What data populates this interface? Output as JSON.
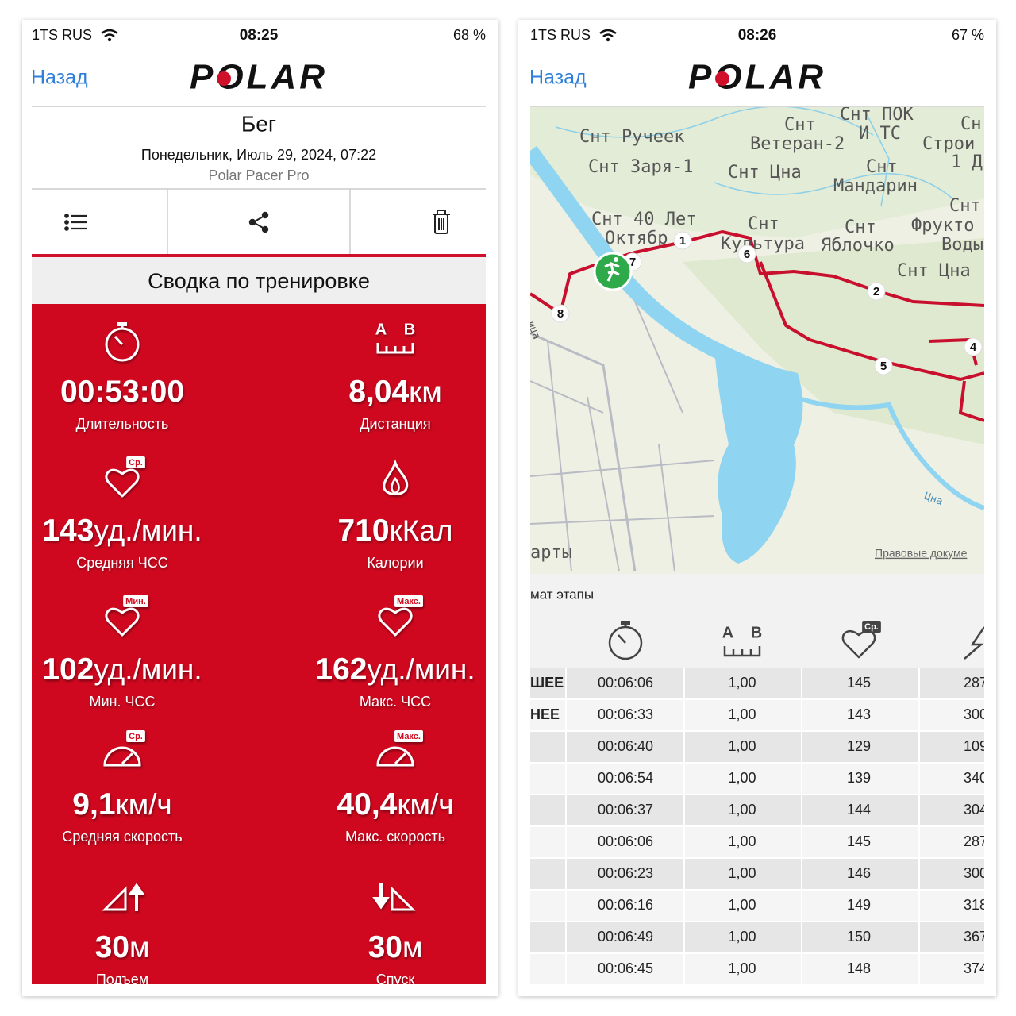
{
  "left_screen": {
    "status": {
      "carrier": "1TS RUS",
      "time": "08:25",
      "battery": "68 %"
    },
    "nav": {
      "back": "Назад",
      "logo": "POLAR"
    },
    "header": {
      "title": "Бег",
      "date": "Понедельник, Июль 29, 2024, 07:22",
      "device": "Polar Pacer Pro"
    },
    "section_title": "Сводка по тренировке",
    "distance_icon_labels": [
      "A",
      "B"
    ],
    "metrics": [
      {
        "value": "00:53:00",
        "label": "Длительность"
      },
      {
        "value": "8,04",
        "unit": "км",
        "label": "Дистанция"
      },
      {
        "value": "143",
        "unit": "уд./мин.",
        "label": "Средняя ЧСС",
        "badge": "Ср."
      },
      {
        "value": "710",
        "unit": "кКал",
        "label": "Калории"
      },
      {
        "value": "102",
        "unit": "уд./мин.",
        "label": "Мин. ЧСС",
        "badge": "Мин."
      },
      {
        "value": "162",
        "unit": "уд./мин.",
        "label": "Макс. ЧСС",
        "badge": "Макс."
      },
      {
        "value": "9,1",
        "unit": "км/ч",
        "label": "Средняя скорость",
        "badge": "Ср."
      },
      {
        "value": "40,4",
        "unit": "км/ч",
        "label": "Макс. скорость",
        "badge": "Макс."
      },
      {
        "value": "30",
        "unit": "м",
        "label": "Подъем"
      },
      {
        "value": "30",
        "unit": "м",
        "label": "Спуск"
      }
    ]
  },
  "right_screen": {
    "status": {
      "carrier": "1TS RUS",
      "time": "08:26",
      "battery": "67 %"
    },
    "nav": {
      "back": "Назад",
      "logo": "POLAR"
    },
    "map": {
      "labels": [
        "Снт Ручеек",
        "Снт Заря-1",
        "Снт",
        "Ветеран-2",
        "Снт ПОК",
        "И ТС",
        "Сн",
        "Строи",
        "1 Д",
        "Снт Цна",
        "Снт",
        "Мандарин",
        "Снт",
        "Снт 40 Лет",
        "Октябр",
        "Снт",
        "Культура",
        "Снт",
        "Фрукто",
        "Яблочко",
        "Воды",
        "Снт Цна",
        "Цна",
        "арты",
        "ица"
      ],
      "markers": [
        "1",
        "2",
        "4",
        "5",
        "6",
        "7",
        "8"
      ],
      "legal": "Правовые докуме"
    },
    "laps_title": "мат этапы",
    "table_icons": {
      "distance": [
        "A",
        "B"
      ],
      "hr_badge": "Ср."
    },
    "table": [
      {
        "label": "ШЕЕ",
        "cells": [
          "00:06:06",
          "1,00",
          "145",
          "287"
        ]
      },
      {
        "label": "НЕЕ",
        "cells": [
          "00:06:33",
          "1,00",
          "143",
          "300"
        ]
      },
      {
        "cells": [
          "00:06:40",
          "1,00",
          "129",
          "109"
        ]
      },
      {
        "cells": [
          "00:06:54",
          "1,00",
          "139",
          "340"
        ]
      },
      {
        "cells": [
          "00:06:37",
          "1,00",
          "144",
          "304"
        ]
      },
      {
        "cells": [
          "00:06:06",
          "1,00",
          "145",
          "287"
        ]
      },
      {
        "cells": [
          "00:06:23",
          "1,00",
          "146",
          "300"
        ]
      },
      {
        "cells": [
          "00:06:16",
          "1,00",
          "149",
          "318"
        ]
      },
      {
        "cells": [
          "00:06:49",
          "1,00",
          "150",
          "367"
        ]
      },
      {
        "cells": [
          "00:06:45",
          "1,00",
          "148",
          "374"
        ]
      }
    ]
  }
}
